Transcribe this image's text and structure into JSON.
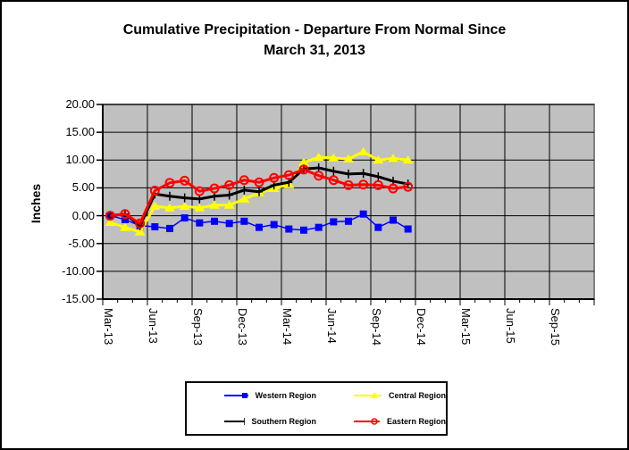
{
  "chart_data": {
    "type": "line",
    "title": "Cumulative Precipitation - Departure From Normal Since March 31, 2013",
    "title_lines": [
      "Cumulative Precipitation - Departure From Normal Since",
      "March 31, 2013"
    ],
    "ylabel": "Inches",
    "ylim": [
      -15,
      20
    ],
    "ytick_step": 5,
    "ytick_labels": [
      "20.00",
      "15.00",
      "10.00",
      "5.00",
      "0.00",
      "-5.00",
      "-10.00",
      "-15.00"
    ],
    "xtick_labels": [
      "Mar-13",
      "Jun-13",
      "Sep-13",
      "Dec-13",
      "Mar-14",
      "Jun-14",
      "Sep-14",
      "Dec-14",
      "Mar-15",
      "Jun-15",
      "Sep-15"
    ],
    "months_total": 33,
    "months_per_major_tick": 3,
    "data_months": [
      "Mar-13",
      "Apr-13",
      "May-13",
      "Jun-13",
      "Jul-13",
      "Aug-13",
      "Sep-13",
      "Oct-13",
      "Nov-13",
      "Dec-13",
      "Jan-14",
      "Feb-14",
      "Mar-14",
      "Apr-14",
      "May-14",
      "Jun-14",
      "Jul-14",
      "Aug-14",
      "Sep-14",
      "Oct-14",
      "Nov-14"
    ],
    "plot_bg": "#c0c0c0",
    "grid": true,
    "gridline_color": "#000000",
    "plot_border_color": "#808080",
    "legend_position": "bottom",
    "series": [
      {
        "name": "Western Region",
        "color": "#0000ff",
        "marker": "square",
        "line_width": 1.5,
        "values": [
          0.0,
          -0.7,
          -1.8,
          -2.0,
          -2.3,
          -0.4,
          -1.3,
          -1.0,
          -1.4,
          -1.0,
          -2.1,
          -1.6,
          -2.4,
          -2.6,
          -2.1,
          -1.1,
          -1.0,
          0.3,
          -2.1,
          -0.8,
          -2.4
        ]
      },
      {
        "name": "Central Region",
        "color": "#ffff00",
        "marker": "triangle",
        "line_width": 3,
        "values": [
          -1.2,
          -2.1,
          -2.9,
          1.7,
          1.4,
          1.7,
          1.4,
          1.9,
          1.9,
          3.0,
          4.1,
          4.9,
          5.6,
          9.6,
          10.5,
          10.4,
          10.2,
          11.5,
          10.0,
          10.3,
          10.0
        ]
      },
      {
        "name": "Southern Region",
        "color": "#000000",
        "marker": "plus",
        "line_width": 3,
        "values": [
          0.0,
          0.3,
          -1.8,
          3.9,
          3.5,
          3.2,
          3.0,
          3.5,
          3.7,
          4.6,
          4.3,
          5.5,
          6.0,
          8.4,
          8.6,
          8.0,
          7.5,
          7.6,
          7.0,
          6.2,
          5.7
        ]
      },
      {
        "name": "Eastern Region",
        "color": "#ff0000",
        "marker": "circle",
        "line_width": 3,
        "values": [
          0.0,
          0.3,
          -1.4,
          4.5,
          5.9,
          6.3,
          4.4,
          4.9,
          5.5,
          6.4,
          6.0,
          6.8,
          7.3,
          8.3,
          7.2,
          6.4,
          5.5,
          5.6,
          5.5,
          4.9,
          5.2
        ]
      }
    ]
  }
}
